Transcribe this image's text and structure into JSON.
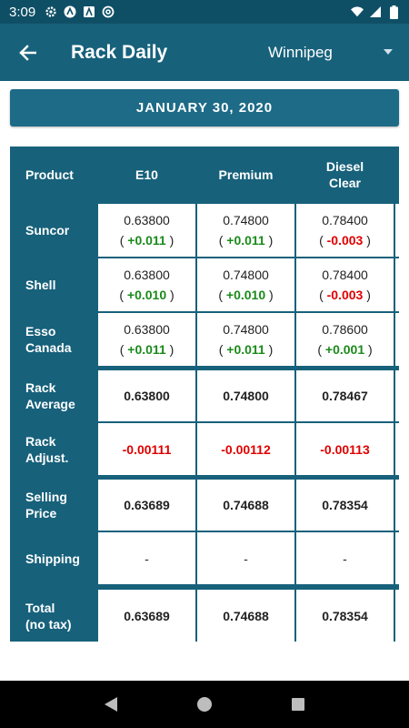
{
  "status_bar": {
    "time": "3:09",
    "icons": [
      "gear-icon",
      "a-circle-icon",
      "a-box-icon",
      "at-icon"
    ],
    "right_icons": [
      "wifi-icon",
      "signal-icon",
      "battery-icon"
    ]
  },
  "app_bar": {
    "title": "Rack Daily",
    "city": "Winnipeg"
  },
  "date_banner": "JANUARY 30, 2020",
  "table": {
    "corner": "Product",
    "columns": [
      "E10",
      "Premium",
      "Diesel\nClear"
    ],
    "rows": [
      {
        "label": "Suncor",
        "cells": [
          {
            "price": "0.63800",
            "open": "( ",
            "change": "+0.011",
            "close": " )",
            "dir": "pos"
          },
          {
            "price": "0.74800",
            "open": "( ",
            "change": "+0.011",
            "close": " )",
            "dir": "pos"
          },
          {
            "price": "0.78400",
            "open": "( ",
            "change": "-0.003",
            "close": " )",
            "dir": "neg"
          }
        ]
      },
      {
        "label": "Shell",
        "cells": [
          {
            "price": "0.63800",
            "open": "( ",
            "change": "+0.010",
            "close": " )",
            "dir": "pos"
          },
          {
            "price": "0.74800",
            "open": "( ",
            "change": "+0.010",
            "close": " )",
            "dir": "pos"
          },
          {
            "price": "0.78400",
            "open": "( ",
            "change": "-0.003",
            "close": " )",
            "dir": "neg"
          }
        ]
      },
      {
        "label": "Esso\nCanada",
        "cells": [
          {
            "price": "0.63800",
            "open": "( ",
            "change": "+0.011",
            "close": " )",
            "dir": "pos"
          },
          {
            "price": "0.74800",
            "open": "( ",
            "change": "+0.011",
            "close": " )",
            "dir": "pos"
          },
          {
            "price": "0.78600",
            "open": "( ",
            "change": "+0.001",
            "close": " )",
            "dir": "pos"
          }
        ]
      }
    ],
    "rack_average": {
      "label": "Rack\nAverage",
      "values": [
        "0.63800",
        "0.74800",
        "0.78467"
      ]
    },
    "rack_adjust": {
      "label": "Rack\nAdjust.",
      "values": [
        "-0.00111",
        "-0.00112",
        "-0.00113"
      ]
    },
    "selling_price": {
      "label": "Selling\nPrice",
      "values": [
        "0.63689",
        "0.74688",
        "0.78354"
      ]
    },
    "shipping": {
      "label": "Shipping",
      "values": [
        "-",
        "-",
        "-"
      ]
    },
    "total": {
      "label": "Total\n(no tax)",
      "values": [
        "0.63689",
        "0.74688",
        "0.78354"
      ]
    }
  },
  "colors": {
    "status_bar": "#0f4f66",
    "app_bar": "#17617b",
    "positive": "#1a8a1a",
    "negative": "#e00000"
  }
}
